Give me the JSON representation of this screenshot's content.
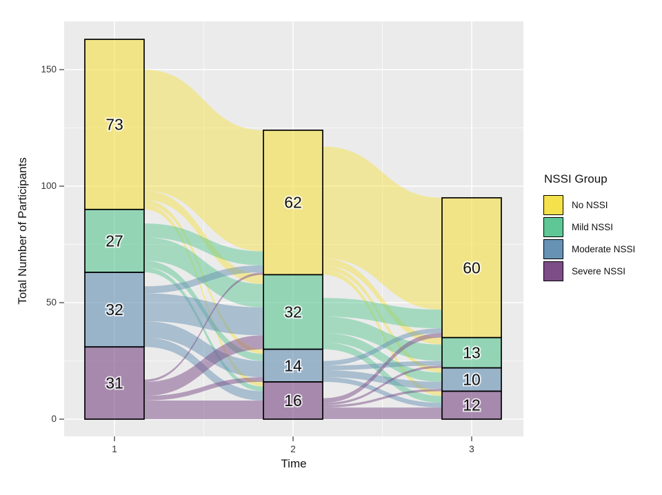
{
  "chart_data": {
    "type": "alluvial",
    "xlabel": "Time",
    "ylabel": "Total Number of Participants",
    "x_categories": [
      "1",
      "2",
      "3"
    ],
    "y_ticks": [
      "150",
      "100",
      "50",
      "0"
    ],
    "y_tick_values": [
      150,
      100,
      50,
      0
    ],
    "y_minor_values": [
      125,
      75,
      25
    ],
    "ylim": [
      0,
      171
    ],
    "grid": true,
    "panel_background": "#EBEBEB",
    "groups": [
      "No NSSI",
      "Mild NSSI",
      "Moderate NSSI",
      "Severe NSSI"
    ],
    "colors": [
      "#F5E14B",
      "#5EC795",
      "#6892B4",
      "#7C4D87"
    ],
    "columns": [
      {
        "x": "1",
        "values": [
          73,
          27,
          32,
          31
        ],
        "total": 163
      },
      {
        "x": "2",
        "values": [
          62,
          32,
          14,
          16
        ],
        "total": 124
      },
      {
        "x": "3",
        "values": [
          60,
          13,
          10,
          12
        ],
        "total": 95
      }
    ],
    "flows": [
      {
        "from": "1",
        "to": "2",
        "matrix": [
          [
            52,
            4,
            2,
            2
          ],
          [
            6,
            10,
            3,
            2
          ],
          [
            3,
            12,
            7,
            4
          ],
          [
            1,
            6,
            2,
            8
          ]
        ]
      },
      {
        "from": "2",
        "to": "3",
        "matrix": [
          [
            48,
            3,
            2,
            2
          ],
          [
            8,
            7,
            4,
            3
          ],
          [
            2,
            2,
            3,
            2
          ],
          [
            2,
            1,
            1,
            5
          ]
        ]
      }
    ],
    "legend": {
      "title": "NSSI Group",
      "position": "right",
      "items": [
        {
          "label": "No NSSI",
          "color": "#F5E14B"
        },
        {
          "label": "Mild NSSI",
          "color": "#5EC795"
        },
        {
          "label": "Moderate NSSI",
          "color": "#6892B4"
        },
        {
          "label": "Severe NSSI",
          "color": "#7C4D87"
        }
      ]
    }
  }
}
